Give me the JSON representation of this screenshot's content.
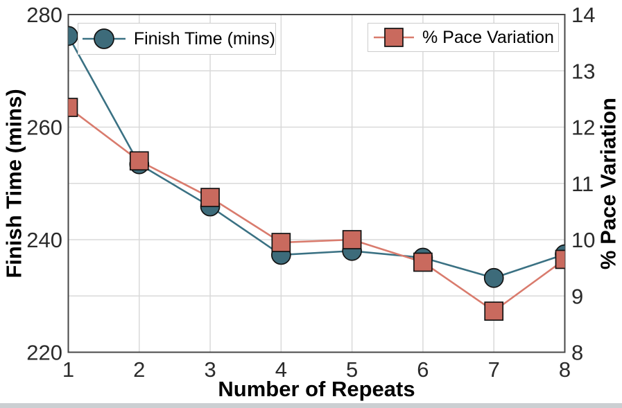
{
  "chart_data": {
    "type": "line",
    "title": "",
    "xlabel": "Number of Repeats",
    "ylabel_left": "Finish Time (mins)",
    "ylabel_right": "% Pace Variation",
    "x": [
      1,
      2,
      3,
      4,
      5,
      6,
      7,
      8
    ],
    "x_ticks": [
      1,
      2,
      3,
      4,
      5,
      6,
      7,
      8
    ],
    "xlim": [
      1,
      8
    ],
    "left_ticks": [
      220,
      240,
      260,
      280
    ],
    "ylim_left": [
      220,
      280
    ],
    "right_ticks": [
      8,
      9,
      10,
      11,
      12,
      13,
      14
    ],
    "ylim_right": [
      8,
      14
    ],
    "grid": true,
    "grid_step_left": 10,
    "grid_step_right": 1,
    "legend": [
      {
        "label": "Finish Time (mins)",
        "marker": "circle",
        "position": "upper left"
      },
      {
        "label": "% Pace Variation",
        "marker": "square",
        "position": "upper right"
      }
    ],
    "series": [
      {
        "id": "finish-time",
        "name": "Finish Time (mins)",
        "axis": "left",
        "marker": "circle",
        "line_color": "#3a7183",
        "fill_color": "#3d6b7a",
        "values": [
          276.2,
          253.4,
          245.9,
          237.3,
          238.0,
          236.8,
          233.2,
          237.4
        ]
      },
      {
        "id": "pace-variation",
        "name": "% Pace Variation",
        "axis": "right",
        "marker": "square",
        "line_color": "#d97b6d",
        "fill_color": "#c96a5e",
        "values": [
          12.35,
          11.4,
          10.75,
          9.95,
          10.0,
          9.6,
          8.73,
          9.65
        ]
      }
    ],
    "colors": {
      "marker_edge": "#121212",
      "grid": "#d9d9d9",
      "spine": "#474747",
      "tick_text": "#2b2b2b",
      "title_text": "#000000",
      "legend_border": "#cccccc",
      "background": "#ffffff",
      "bottom_strip": "#cbcfd2"
    }
  }
}
